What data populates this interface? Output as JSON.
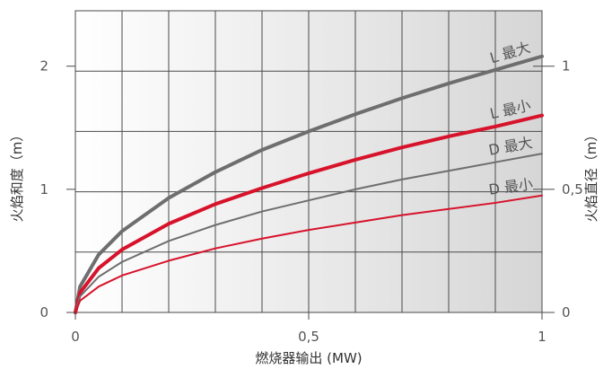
{
  "chart_data": {
    "type": "line",
    "xlabel": "燃烧器输出 (MW)",
    "ylabel_left": "火焰和度（m）",
    "ylabel_right": "火焰直径（m）",
    "x_ticks": [
      "0",
      "0,5",
      "1"
    ],
    "y_left_ticks": [
      "0",
      "1",
      "2"
    ],
    "y_right_ticks": [
      "0",
      "0,5",
      "1"
    ],
    "xlim": [
      0,
      1
    ],
    "ylim_left": [
      0,
      2.45
    ],
    "ylim_right": [
      0,
      1.225
    ],
    "grid": true,
    "colors": {
      "gray": "#6e6e6e",
      "red": "#d7132b",
      "background_light": "#ffffff",
      "background_dark": "#d6d6d6"
    },
    "series": [
      {
        "name": "L 最大",
        "axis": "left",
        "color": "#6e6e6e",
        "width": 4,
        "x": [
          0,
          0.01,
          0.05,
          0.1,
          0.2,
          0.3,
          0.4,
          0.5,
          0.6,
          0.7,
          0.8,
          0.9,
          1.0
        ],
        "y": [
          0,
          0.21,
          0.47,
          0.66,
          0.93,
          1.14,
          1.32,
          1.47,
          1.61,
          1.74,
          1.86,
          1.97,
          2.08
        ]
      },
      {
        "name": "L 最小",
        "axis": "left",
        "color": "#d7132b",
        "width": 4,
        "x": [
          0,
          0.01,
          0.05,
          0.1,
          0.2,
          0.3,
          0.4,
          0.5,
          0.6,
          0.7,
          0.8,
          0.9,
          1.0
        ],
        "y": [
          0,
          0.16,
          0.36,
          0.51,
          0.72,
          0.88,
          1.01,
          1.13,
          1.24,
          1.34,
          1.43,
          1.51,
          1.6
        ]
      },
      {
        "name": "D 最大",
        "axis": "left",
        "color": "#6e6e6e",
        "width": 2,
        "x": [
          0,
          0.01,
          0.05,
          0.1,
          0.2,
          0.3,
          0.4,
          0.5,
          0.6,
          0.7,
          0.8,
          0.9,
          1.0
        ],
        "y": [
          0,
          0.13,
          0.29,
          0.41,
          0.58,
          0.71,
          0.82,
          0.91,
          1.0,
          1.08,
          1.15,
          1.22,
          1.29
        ]
      },
      {
        "name": "D 最小",
        "axis": "left",
        "color": "#d7132b",
        "width": 2,
        "x": [
          0,
          0.01,
          0.05,
          0.1,
          0.2,
          0.3,
          0.4,
          0.5,
          0.6,
          0.7,
          0.8,
          0.9,
          1.0
        ],
        "y": [
          0,
          0.095,
          0.21,
          0.3,
          0.42,
          0.52,
          0.6,
          0.67,
          0.73,
          0.79,
          0.84,
          0.89,
          0.95
        ]
      }
    ]
  }
}
